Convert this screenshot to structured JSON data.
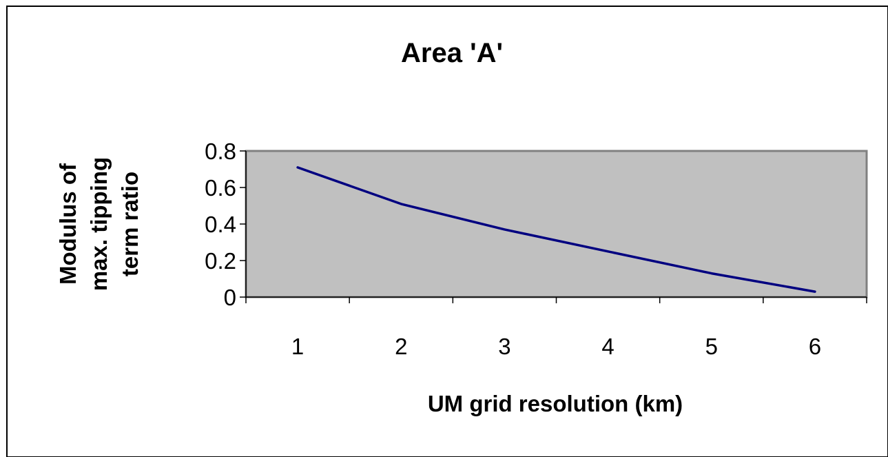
{
  "chart_data": {
    "type": "line",
    "title": "Area 'A'",
    "xlabel": "UM grid resolution (km)",
    "ylabel_lines": [
      "Modulus of",
      "max. tipping",
      "term ratio"
    ],
    "categories": [
      "1",
      "2",
      "3",
      "4",
      "5",
      "6"
    ],
    "series": [
      {
        "values": [
          0.71,
          0.51,
          0.37,
          0.25,
          0.13,
          0.03
        ]
      }
    ],
    "ylim": [
      0,
      0.8
    ],
    "yticks": [
      {
        "value": 0,
        "label": "0"
      },
      {
        "value": 0.2,
        "label": "0.2"
      },
      {
        "value": 0.4,
        "label": "0.4"
      },
      {
        "value": 0.6,
        "label": "0.6"
      },
      {
        "value": 0.8,
        "label": "0.8"
      }
    ],
    "grid": false,
    "legend": "none",
    "colors": {
      "plot_background": "#c0c0c0",
      "line": "#000080",
      "plot_border": "#808080",
      "axis": "#000000"
    }
  }
}
